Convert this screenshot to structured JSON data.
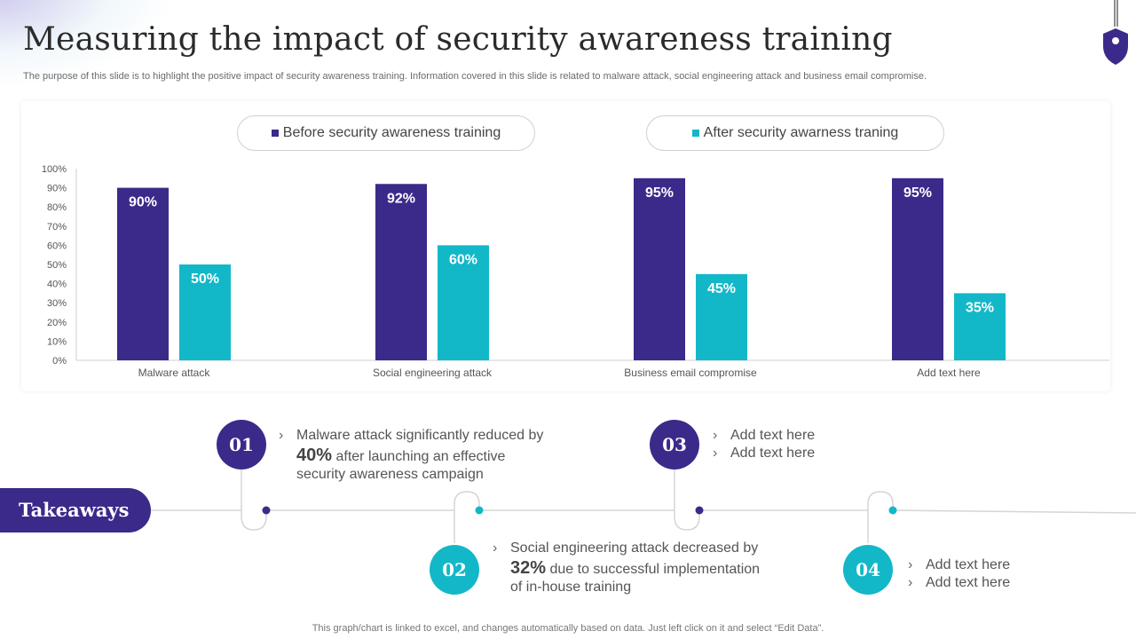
{
  "header": {
    "title": "Measuring the impact of security awareness training",
    "subtitle": "The purpose of this slide is to highlight the positive impact of security awareness training. Information covered in this slide is related to malware attack, social engineering attack and business email compromise."
  },
  "colors": {
    "before": "#3b2a8a",
    "after": "#12b8c8",
    "axis": "#cfcfcf"
  },
  "legend": {
    "before": "Before security awareness training",
    "after": "After security awarness traning"
  },
  "chart_data": {
    "type": "bar",
    "title": "",
    "xlabel": "",
    "ylabel": "",
    "ylim": [
      0,
      100
    ],
    "y_ticks": [
      "0%",
      "10%",
      "20%",
      "30%",
      "40%",
      "50%",
      "60%",
      "70%",
      "80%",
      "90%",
      "100%"
    ],
    "categories": [
      "Malware attack",
      "Social engineering attack",
      "Business email compromise",
      "Add text here"
    ],
    "series": [
      {
        "name": "Before security awareness training",
        "values": [
          90,
          92,
          95,
          95
        ],
        "labels": [
          "90%",
          "92%",
          "95%",
          "95%"
        ]
      },
      {
        "name": "After security awarness traning",
        "values": [
          50,
          60,
          45,
          35
        ],
        "labels": [
          "50%",
          "60%",
          "45%",
          "35%"
        ]
      }
    ],
    "legend_position": "top",
    "grid": false
  },
  "takeaways": {
    "label": "Takeaways",
    "steps": [
      {
        "number": "01",
        "lines": [
          "Malware attack significantly reduced by"
        ],
        "highlight": "40%",
        "rest": [
          "after launching  an effective",
          "security awareness campaign"
        ]
      },
      {
        "number": "02",
        "lines": [
          "Social engineering attack decreased by"
        ],
        "highlight": "32%",
        "rest": [
          "due to successful implementation",
          "of in-house training"
        ]
      },
      {
        "number": "03",
        "bullets": [
          "Add text here",
          "Add text here"
        ]
      },
      {
        "number": "04",
        "bullets": [
          "Add text here",
          "Add text here"
        ]
      }
    ]
  },
  "footer": "This graph/chart is linked to excel,  and changes automatically based on data. Just left click on it and select “Edit Data”."
}
